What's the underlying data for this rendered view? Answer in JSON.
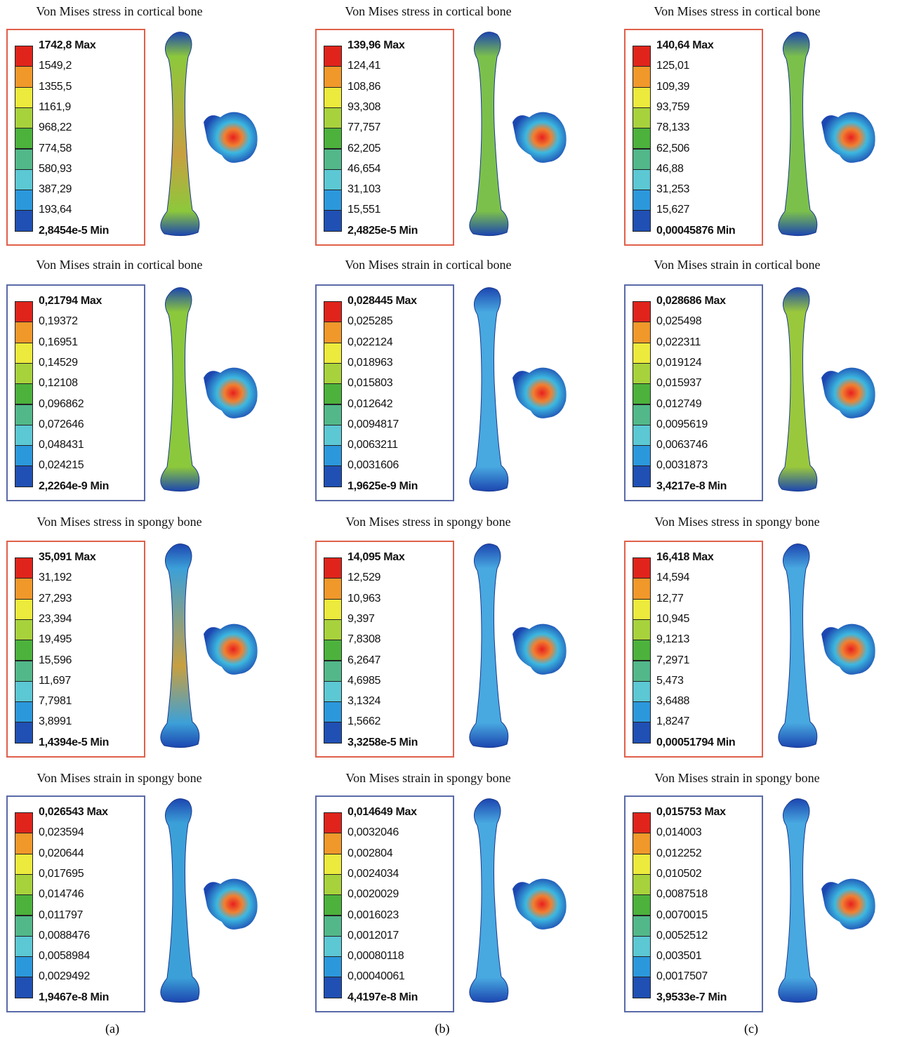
{
  "rows": [
    [
      {
        "title": "Von Mises stress in cortical bone",
        "legend": [
          "1742,8 Max",
          "1549,2",
          "1355,5",
          "1161,9",
          "968,22",
          "774,58",
          "580,93",
          "387,29",
          "193,64",
          "2,8454e-5 Min"
        ]
      },
      {
        "title": "Von Mises stress in cortical bone",
        "legend": [
          "139,96 Max",
          "124,41",
          "108,86",
          "93,308",
          "77,757",
          "62,205",
          "46,654",
          "31,103",
          "15,551",
          "2,4825e-5 Min"
        ]
      },
      {
        "title": "Von Mises stress in cortical bone",
        "legend": [
          "140,64 Max",
          "125,01",
          "109,39",
          "93,759",
          "78,133",
          "62,506",
          "46,88",
          "31,253",
          "15,627",
          "0,00045876 Min"
        ]
      }
    ],
    [
      {
        "title": "Von Mises strain in cortical bone",
        "legend": [
          "0,21794 Max",
          "0,19372",
          "0,16951",
          "0,14529",
          "0,12108",
          "0,096862",
          "0,072646",
          "0,048431",
          "0,024215",
          "2,2264e-9 Min"
        ]
      },
      {
        "title": "Von Mises strain in cortical bone",
        "legend": [
          "0,028445 Max",
          "0,025285",
          "0,022124",
          "0,018963",
          "0,015803",
          "0,012642",
          "0,0094817",
          "0,0063211",
          "0,0031606",
          "1,9625e-9 Min"
        ]
      },
      {
        "title": "Von Mises strain in cortical bone",
        "legend": [
          "0,028686 Max",
          "0,025498",
          "0,022311",
          "0,019124",
          "0,015937",
          "0,012749",
          "0,0095619",
          "0,0063746",
          "0,0031873",
          "3,4217e-8 Min"
        ]
      }
    ],
    [
      {
        "title": "Von Mises stress in spongy bone",
        "legend": [
          "35,091 Max",
          "31,192",
          "27,293",
          "23,394",
          "19,495",
          "15,596",
          "11,697",
          "7,7981",
          "3,8991",
          "1,4394e-5 Min"
        ]
      },
      {
        "title": "Von Mises stress in spongy bone",
        "legend": [
          "14,095 Max",
          "12,529",
          "10,963",
          "9,397",
          "7,8308",
          "6,2647",
          "4,6985",
          "3,1324",
          "1,5662",
          "3,3258e-5 Min"
        ]
      },
      {
        "title": "Von Mises stress in spongy bone",
        "legend": [
          "16,418 Max",
          "14,594",
          "12,77",
          "10,945",
          "9,1213",
          "7,2971",
          "5,473",
          "3,6488",
          "1,8247",
          "0,00051794 Min"
        ]
      }
    ],
    [
      {
        "title": "Von Mises strain in spongy bone",
        "legend": [
          "0,026543 Max",
          "0,023594",
          "0,020644",
          "0,017695",
          "0,014746",
          "0,011797",
          "0,0088476",
          "0,0058984",
          "0,0029492",
          "1,9467e-8 Min"
        ]
      },
      {
        "title": "Von Mises strain in spongy bone",
        "legend": [
          "0,014649 Max",
          "0,0032046",
          "0,002804",
          "0,0024034",
          "0,0020029",
          "0,0016023",
          "0,0012017",
          "0,00080118",
          "0,00040061",
          "4,4197e-8 Min"
        ]
      },
      {
        "title": "Von Mises strain in spongy bone",
        "legend": [
          "0,015753 Max",
          "0,014003",
          "0,012252",
          "0,010502",
          "0,0087518",
          "0,0070015",
          "0,0052512",
          "0,003501",
          "0,0017507",
          "3,9533e-7 Min"
        ]
      }
    ]
  ],
  "column_labels": [
    "(a)",
    "(b)",
    "(c)"
  ]
}
